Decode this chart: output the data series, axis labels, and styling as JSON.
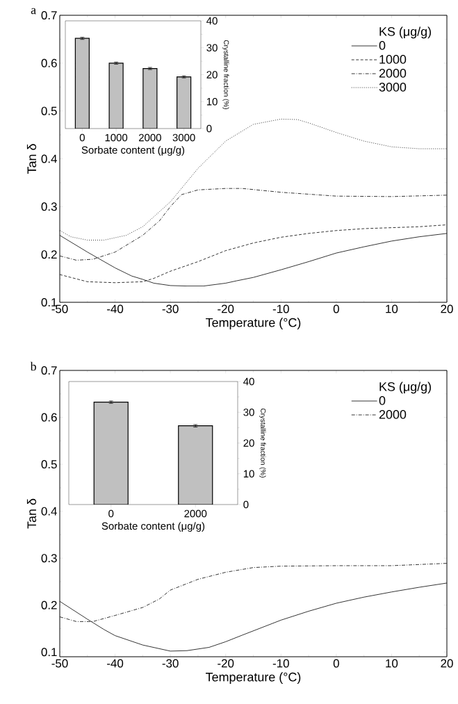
{
  "chart_data": [
    {
      "type": "line",
      "title": "a",
      "xlabel": "Temperature (°C)",
      "ylabel": "Tan δ",
      "legend_title": "KS (μg/g)",
      "legend": "top right",
      "xlim": [
        -50,
        20
      ],
      "xticks": [
        -50,
        -40,
        -30,
        -20,
        -10,
        0,
        10,
        20
      ],
      "ylim": [
        0.1,
        0.7
      ],
      "yticks": [
        0.1,
        0.2,
        0.3,
        0.4,
        0.5,
        0.6,
        0.7
      ],
      "series": [
        {
          "name": "0",
          "color": "#000000",
          "line_style": "solid",
          "x": [
            -50,
            -45,
            -40,
            -37,
            -35,
            -33,
            -30,
            -27,
            -24,
            -20,
            -18,
            -15,
            -10,
            -5,
            0,
            5,
            10,
            15,
            20
          ],
          "values": [
            0.24,
            0.205,
            0.172,
            0.155,
            0.148,
            0.14,
            0.135,
            0.134,
            0.134,
            0.14,
            0.145,
            0.152,
            0.168,
            0.185,
            0.203,
            0.216,
            0.228,
            0.237,
            0.244
          ]
        },
        {
          "name": "1000",
          "color": "#000000",
          "line_style": "dashed",
          "x": [
            -50,
            -45,
            -40,
            -35,
            -33,
            -30,
            -25,
            -20,
            -15,
            -10,
            -5,
            0,
            5,
            10,
            15,
            20
          ],
          "values": [
            0.158,
            0.143,
            0.141,
            0.143,
            0.15,
            0.165,
            0.185,
            0.208,
            0.224,
            0.236,
            0.244,
            0.25,
            0.254,
            0.256,
            0.258,
            0.262
          ]
        },
        {
          "name": "2000",
          "color": "#000000",
          "line_style": "dashdot",
          "x": [
            -50,
            -47,
            -44,
            -40,
            -35,
            -32,
            -30,
            -28,
            -25,
            -20,
            -17,
            -10,
            -5,
            0,
            10,
            20
          ],
          "values": [
            0.197,
            0.188,
            0.19,
            0.205,
            0.24,
            0.27,
            0.3,
            0.325,
            0.335,
            0.338,
            0.338,
            0.33,
            0.326,
            0.322,
            0.321,
            0.324
          ]
        },
        {
          "name": "3000",
          "color": "#000000",
          "line_style": "dotted",
          "x": [
            -50,
            -48,
            -45,
            -42,
            -38,
            -35,
            -30,
            -25,
            -20,
            -15,
            -10,
            -7,
            -5,
            0,
            5,
            10,
            15,
            20
          ],
          "values": [
            0.25,
            0.237,
            0.23,
            0.23,
            0.24,
            0.258,
            0.31,
            0.38,
            0.437,
            0.472,
            0.483,
            0.482,
            0.475,
            0.455,
            0.437,
            0.425,
            0.421,
            0.421
          ]
        }
      ]
    },
    {
      "type": "bar",
      "xlabel": "Sorbate content (μg/g)",
      "ylabel": "Crystalline fraction (%)",
      "categories": [
        "0",
        "1000",
        "2000",
        "3000"
      ],
      "values": [
        33.5,
        24.3,
        22.3,
        19.2
      ],
      "errors": [
        0.4,
        0.4,
        0.4,
        0.4
      ],
      "color": "#c0c0c0",
      "ylim": [
        0,
        40
      ],
      "yticks": [
        0,
        10,
        20,
        30,
        40
      ]
    },
    {
      "type": "line",
      "title": "b",
      "xlabel": "Temperature (°C)",
      "ylabel": "Tan δ",
      "legend_title": "KS (μg/g)",
      "legend": "top right",
      "xlim": [
        -50,
        20
      ],
      "xticks": [
        -50,
        -40,
        -30,
        -20,
        -10,
        0,
        10,
        20
      ],
      "ylim": [
        0.09,
        0.7
      ],
      "yticks": [
        0.1,
        0.2,
        0.3,
        0.4,
        0.5,
        0.6,
        0.7
      ],
      "series": [
        {
          "name": "0",
          "color": "#000000",
          "line_style": "solid",
          "x": [
            -50,
            -45,
            -42,
            -40,
            -35,
            -30,
            -27,
            -23,
            -20,
            -17,
            -10,
            -5,
            0,
            5,
            10,
            15,
            20
          ],
          "values": [
            0.208,
            0.17,
            0.148,
            0.135,
            0.115,
            0.102,
            0.103,
            0.11,
            0.122,
            0.136,
            0.168,
            0.187,
            0.204,
            0.217,
            0.228,
            0.238,
            0.247
          ]
        },
        {
          "name": "2000",
          "color": "#000000",
          "line_style": "dashdot",
          "x": [
            -50,
            -47,
            -44,
            -40,
            -35,
            -32,
            -30,
            -25,
            -20,
            -15,
            -10,
            0,
            10,
            20
          ],
          "values": [
            0.175,
            0.165,
            0.165,
            0.178,
            0.195,
            0.213,
            0.232,
            0.255,
            0.27,
            0.28,
            0.283,
            0.284,
            0.284,
            0.289
          ]
        }
      ]
    },
    {
      "type": "bar",
      "xlabel": "Sorbate content (μg/g)",
      "ylabel": "Crystalline fraction (%)",
      "categories": [
        "0",
        "2000"
      ],
      "values": [
        33.3,
        25.6
      ],
      "errors": [
        0.4,
        0.4
      ],
      "color": "#c0c0c0",
      "ylim": [
        0,
        40
      ],
      "yticks": [
        0,
        10,
        20,
        30,
        40
      ]
    }
  ]
}
